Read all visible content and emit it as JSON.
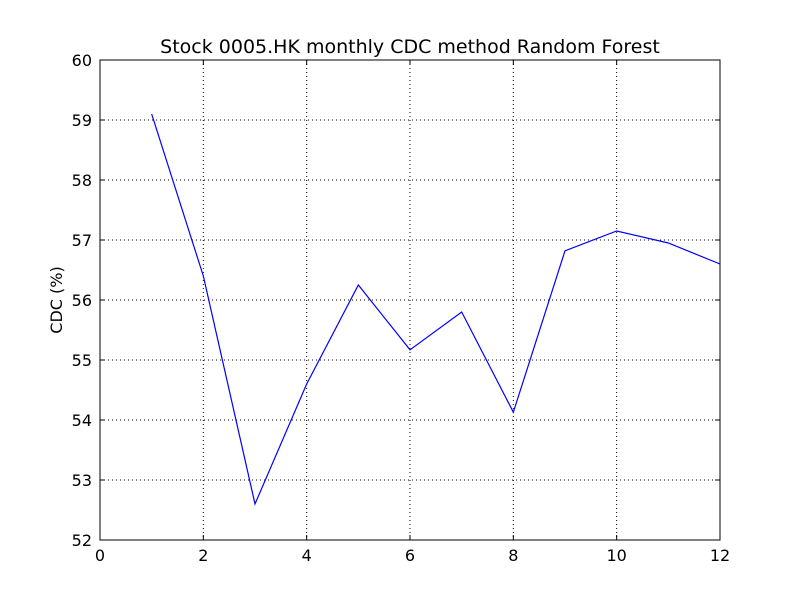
{
  "chart_data": {
    "type": "line",
    "title": "Stock 0005.HK monthly CDC method Random Forest",
    "xlabel": "",
    "ylabel": "CDC (%)",
    "xlim": [
      0,
      12
    ],
    "ylim": [
      52,
      60
    ],
    "xticks": [
      0,
      2,
      4,
      6,
      8,
      10,
      12
    ],
    "yticks": [
      52,
      53,
      54,
      55,
      56,
      57,
      58,
      59,
      60
    ],
    "xtick_labels": [
      "0",
      "2",
      "4",
      "6",
      "8",
      "10",
      "12"
    ],
    "ytick_labels": [
      "52",
      "53",
      "54",
      "55",
      "56",
      "57",
      "58",
      "59",
      "60"
    ],
    "grid": true,
    "series": [
      {
        "color": "#0000ff",
        "x": [
          1,
          2,
          3,
          4,
          5,
          6,
          7,
          8,
          9,
          10,
          11,
          12
        ],
        "y": [
          59.1,
          56.4,
          52.6,
          54.6,
          56.25,
          55.17,
          55.8,
          54.13,
          56.82,
          57.15,
          56.95,
          56.6
        ]
      }
    ]
  }
}
